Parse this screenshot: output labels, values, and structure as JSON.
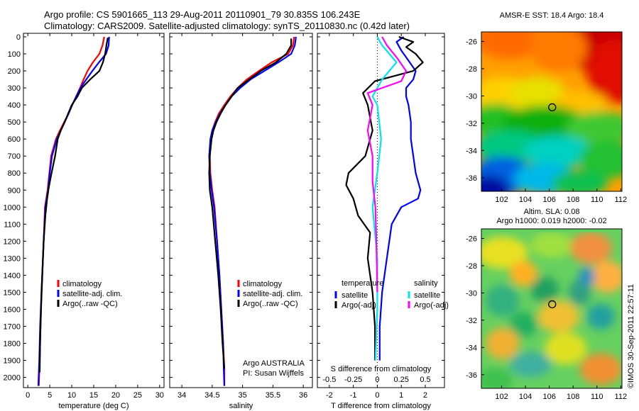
{
  "header": {
    "line1": "Argo profile: CS 5901665_113 29-Aug-2011 20110901_79 30.835S 106.243E",
    "line2": "Climatology: CARS2009. Satellite-adjusted climatology: synTS_20110830.nc (0.42d later)"
  },
  "colors": {
    "climatology": "#ff0000",
    "satellite": "#0000ff",
    "argo": "#000000",
    "salinity_satellite": "#00e5ee",
    "salinity_argo": "#ff00ff"
  },
  "chart_data": [
    {
      "type": "line",
      "id": "temperature",
      "xlabel": "temperature (deg C)",
      "xlim": [
        -1,
        31
      ],
      "xticks": [
        "0",
        "5",
        "10",
        "15",
        "20",
        "25",
        "30"
      ],
      "ylim": [
        0,
        2060
      ],
      "yticks": [
        "0",
        "100",
        "200",
        "300",
        "400",
        "500",
        "600",
        "700",
        "800",
        "900",
        "1000",
        "1100",
        "1200",
        "1300",
        "1400",
        "1500",
        "1600",
        "1700",
        "1800",
        "1900",
        "2000"
      ],
      "legend": [
        "climatology",
        "satellite-adj. clim.",
        "Argo(..raw -QC)"
      ],
      "series": [
        {
          "name": "climatology",
          "color": "#ff0000",
          "x": [
            17.4,
            17.0,
            16.3,
            14.8,
            13.6,
            12.7,
            11.9,
            11.0,
            10.1,
            9.3,
            8.3,
            7.3,
            6.4,
            5.3,
            4.9,
            4.5,
            3.9,
            3.6,
            3.1,
            2.9,
            2.7,
            2.5
          ],
          "y": [
            0,
            50,
            100,
            150,
            200,
            250,
            300,
            350,
            400,
            450,
            500,
            550,
            600,
            700,
            800,
            900,
            1000,
            1200,
            1500,
            1700,
            1900,
            2050
          ]
        },
        {
          "name": "satellite-adj. clim.",
          "color": "#0000ff",
          "x": [
            18.5,
            18.4,
            17.8,
            16.2,
            14.7,
            13.3,
            12.0,
            11.0,
            10.1,
            9.3,
            8.4,
            7.5,
            6.6,
            5.5,
            5.0,
            4.6,
            4.0,
            3.6,
            3.1,
            2.8,
            2.6,
            2.4
          ],
          "y": [
            0,
            50,
            100,
            150,
            200,
            250,
            300,
            350,
            400,
            450,
            500,
            550,
            600,
            700,
            800,
            900,
            1000,
            1200,
            1500,
            1700,
            1900,
            2050
          ]
        },
        {
          "name": "Argo(..raw -QC)",
          "color": "#000000",
          "x": [
            18.2,
            17.9,
            17.6,
            17.1,
            16.3,
            14.2,
            12.3,
            11.3,
            10.0,
            9.2,
            8.4,
            7.5,
            6.8,
            6.2,
            5.4,
            4.8,
            4.4,
            4.0,
            3.6,
            3.3,
            3.0,
            2.8,
            2.7
          ],
          "y": [
            5,
            50,
            100,
            150,
            200,
            250,
            300,
            350,
            400,
            450,
            500,
            550,
            600,
            700,
            800,
            880,
            950,
            1050,
            1200,
            1400,
            1600,
            1800,
            1970
          ]
        }
      ]
    },
    {
      "type": "line",
      "id": "salinity",
      "xlabel": "salinity",
      "xlim": [
        33.8,
        36.15
      ],
      "xticks": [
        "34",
        "34.5",
        "35",
        "35.5",
        "36"
      ],
      "ylim": [
        0,
        2060
      ],
      "legend": [
        "climatology",
        "satellite-adj. clim.",
        "Argo(..raw -QC)"
      ],
      "annotation": [
        "Argo AUSTRALIA",
        "PI: Susan Wijffels"
      ],
      "series": [
        {
          "name": "climatology",
          "color": "#ff0000",
          "x": [
            35.85,
            35.83,
            35.75,
            35.48,
            35.27,
            35.07,
            34.92,
            34.8,
            34.7,
            34.61,
            34.55,
            34.5,
            34.48,
            34.46,
            34.47,
            34.5,
            34.54,
            34.58,
            34.62,
            34.65,
            34.68,
            34.7,
            34.7
          ],
          "y": [
            0,
            50,
            100,
            150,
            200,
            250,
            300,
            350,
            400,
            450,
            500,
            550,
            600,
            700,
            800,
            900,
            1000,
            1200,
            1400,
            1600,
            1800,
            1950,
            2050
          ]
        },
        {
          "name": "satellite-adj. clim.",
          "color": "#0000ff",
          "x": [
            35.88,
            35.86,
            35.8,
            35.59,
            35.36,
            35.13,
            34.96,
            34.82,
            34.72,
            34.63,
            34.56,
            34.5,
            34.47,
            34.45,
            34.46,
            34.49,
            34.53,
            34.58,
            34.62,
            34.65,
            34.68,
            34.69,
            34.7
          ],
          "y": [
            0,
            50,
            100,
            150,
            200,
            250,
            300,
            350,
            400,
            450,
            500,
            550,
            600,
            700,
            800,
            900,
            1000,
            1200,
            1400,
            1600,
            1800,
            1950,
            2050
          ]
        },
        {
          "name": "Argo(..raw -QC)",
          "color": "#000000",
          "x": [
            35.8,
            35.8,
            35.72,
            35.55,
            35.3,
            34.92,
            34.82,
            34.72,
            34.64,
            34.57,
            34.52,
            34.49,
            34.46,
            34.45,
            34.46,
            34.5,
            34.55,
            34.6,
            34.64,
            34.67,
            34.7
          ],
          "y": [
            10,
            50,
            100,
            150,
            200,
            300,
            350,
            400,
            450,
            500,
            550,
            600,
            700,
            800,
            900,
            1000,
            1200,
            1400,
            1600,
            1800,
            1950
          ]
        }
      ]
    },
    {
      "type": "line",
      "id": "difference",
      "xlabel_top": "S difference from climatology",
      "xticks_top": [
        "-0.5",
        "-0.25",
        "0",
        "0.25",
        "0.5"
      ],
      "xlabel": "T difference from climatology",
      "xlim": [
        -2.5,
        2.8
      ],
      "xticks": [
        "-2",
        "-1",
        "0",
        "1",
        "2"
      ],
      "ylim": [
        0,
        2060
      ],
      "legend_temperature": {
        "title": "temperature",
        "items": [
          "satellite",
          "Argo(-adj)"
        ]
      },
      "legend_salinity": {
        "title": "salinity",
        "items": [
          "satellite",
          "Argo(-adj)"
        ]
      },
      "series": [
        {
          "name": "temperature satellite",
          "color": "#0000ff",
          "x": [
            1.1,
            0.8,
            1.0,
            1.2,
            1.4,
            1.6,
            1.5,
            1.2,
            1.2,
            1.3,
            1.4,
            1.4,
            1.5,
            1.6,
            1.8,
            1.7,
            1.0,
            0.6,
            0.4,
            0.2,
            0.1,
            0.1
          ],
          "y": [
            0,
            30,
            80,
            120,
            160,
            200,
            250,
            300,
            350,
            400,
            500,
            600,
            700,
            800,
            900,
            950,
            1000,
            1100,
            1300,
            1500,
            1700,
            1900
          ]
        },
        {
          "name": "temperature Argo(-adj)",
          "color": "#000000",
          "x": [
            0.9,
            1.5,
            1.2,
            1.6,
            1.9,
            1.5,
            -0.1,
            -0.6,
            -0.4,
            -0.2,
            -0.5,
            -1.2,
            -1.3,
            -1.0,
            -0.8,
            -0.3,
            -0.4,
            -0.2,
            -0.1,
            -0.1
          ],
          "y": [
            0,
            30,
            60,
            100,
            150,
            200,
            260,
            330,
            400,
            550,
            700,
            800,
            870,
            950,
            1050,
            1150,
            1300,
            1500,
            1700,
            1900
          ]
        },
        {
          "name": "salinity satellite",
          "color": "#00e5ee",
          "x": [
            0.0,
            0.05,
            0.2,
            0.05,
            -0.05,
            0.0,
            0.02,
            0.04,
            0.02,
            0.0,
            -0.05,
            0.0,
            0.0,
            -0.02
          ],
          "y": [
            0,
            50,
            150,
            250,
            350,
            400,
            500,
            600,
            700,
            800,
            1000,
            1300,
            1600,
            1900
          ]
        },
        {
          "name": "salinity Argo(-adj)",
          "color": "#ff00ff",
          "x": [
            0.05,
            0.1,
            0.2,
            0.3,
            0.25,
            -0.1,
            -0.05,
            -0.1,
            -0.05,
            -0.05,
            -0.02,
            -0.01,
            0.0
          ],
          "y": [
            0,
            50,
            120,
            200,
            260,
            330,
            400,
            550,
            700,
            850,
            1000,
            1200,
            1500
          ]
        }
      ]
    },
    {
      "type": "heatmap",
      "id": "sst-map",
      "title": "AMSR-E SST: 18.4 Argo: 18.4",
      "xlim": [
        100.3,
        112.1
      ],
      "xticks": [
        "102",
        "104",
        "106",
        "108",
        "110",
        "112"
      ],
      "ylim": [
        -37,
        -25.3
      ],
      "yticks": [
        "-26",
        "-28",
        "-30",
        "-32",
        "-34",
        "-36"
      ],
      "marker": {
        "lon": 106.243,
        "lat": -30.835
      }
    },
    {
      "type": "heatmap",
      "id": "sla-map",
      "title_line1": "Altim. SLA: 0.08",
      "title_line2": "Argo h1000: 0.019 h2000: -0.02",
      "xlim": [
        100.3,
        112.1
      ],
      "xticks": [
        "102",
        "104",
        "106",
        "108",
        "110",
        "112"
      ],
      "ylim": [
        -37,
        -25.3
      ],
      "yticks": [
        "-26",
        "-28",
        "-30",
        "-32",
        "-34",
        "-36"
      ],
      "marker": {
        "lon": 106.243,
        "lat": -30.835
      }
    }
  ],
  "footer": {
    "imos_stamp": "©IMOS 30-Sep-2011 22:57:11"
  }
}
